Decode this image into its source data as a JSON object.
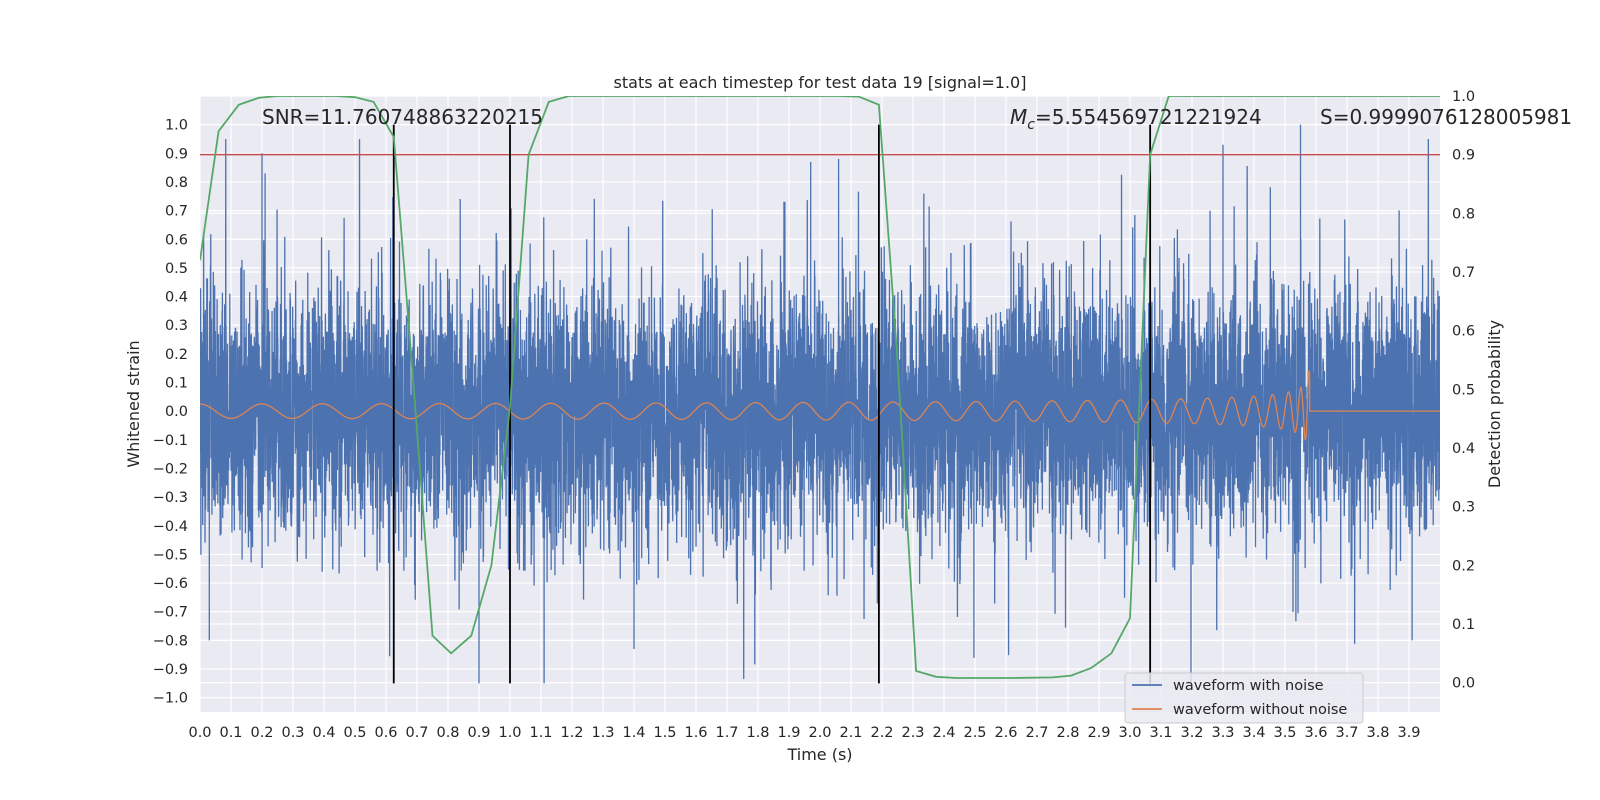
{
  "chart_data": {
    "type": "line",
    "title": "stats at each timestep for test data 19 [signal=1.0]",
    "xlabel": "Time (s)",
    "ylabel": "Whitened strain",
    "y2label": "Detection probability",
    "xlim": [
      0.0,
      4.0
    ],
    "ylim": [
      -1.05,
      1.1
    ],
    "y2lim": [
      -0.05,
      1.0
    ],
    "x_ticks": [
      "0.0",
      "0.1",
      "0.2",
      "0.3",
      "0.4",
      "0.5",
      "0.6",
      "0.7",
      "0.8",
      "0.9",
      "1.0",
      "1.1",
      "1.2",
      "1.3",
      "1.4",
      "1.5",
      "1.6",
      "1.7",
      "1.8",
      "1.9",
      "2.0",
      "2.1",
      "2.2",
      "2.3",
      "2.4",
      "2.5",
      "2.6",
      "2.7",
      "2.8",
      "2.9",
      "3.0",
      "3.1",
      "3.2",
      "3.3",
      "3.4",
      "3.5",
      "3.6",
      "3.7",
      "3.8",
      "3.9"
    ],
    "y_ticks": [
      "1.0",
      "0.9",
      "0.8",
      "0.7",
      "0.6",
      "0.5",
      "0.4",
      "0.3",
      "0.2",
      "0.1",
      "0.0",
      "−0.1",
      "−0.2",
      "−0.3",
      "−0.4",
      "−0.5",
      "−0.6",
      "−0.7",
      "−0.8",
      "−0.9",
      "−1.0"
    ],
    "y2_ticks": [
      "1.0",
      "0.9",
      "0.8",
      "0.7",
      "0.6",
      "0.5",
      "0.4",
      "0.3",
      "0.2",
      "0.1",
      "0.0"
    ],
    "annotations": {
      "snr": "SNR=11.760748863220215",
      "mc_symbol": "M",
      "mc_sub": "c",
      "mc_value": "=5.554569721221924",
      "s": "S=0.9999076128005981"
    },
    "threshold": {
      "value": 0.9,
      "axis": "y2",
      "color": "#c44e52"
    },
    "vlines": [
      0.625,
      1.0,
      2.19,
      3.065
    ],
    "vline_range": [
      -0.95,
      1.0
    ],
    "series": [
      {
        "name": "waveform with noise",
        "color": "#4c72b0",
        "axis": "y",
        "kind": "noise",
        "sample_rate": 2048,
        "std": 0.22,
        "envelope_range": [
          -0.95,
          0.95
        ],
        "spikes": [
          [
            0.2,
            0.9
          ],
          [
            0.21,
            0.83
          ],
          [
            0.03,
            -0.8
          ],
          [
            0.9,
            -0.95
          ],
          [
            1.11,
            -0.95
          ],
          [
            3.55,
            1.0
          ],
          [
            3.3,
            0.93
          ],
          [
            2.06,
            0.88
          ],
          [
            1.97,
            0.87
          ],
          [
            3.91,
            -0.8
          ],
          [
            1.4,
            -0.83
          ]
        ]
      },
      {
        "name": "waveform without noise",
        "color": "#dd8452",
        "axis": "y",
        "kind": "chirp",
        "amplitude_range": [
          0.025,
          0.375
        ],
        "end_time": 3.58
      },
      {
        "name": "detection probability",
        "color": "#55a868",
        "axis": "y2",
        "x": [
          0.0,
          0.06,
          0.125,
          0.19,
          0.25,
          0.3,
          0.38,
          0.44,
          0.5,
          0.56,
          0.625,
          0.69,
          0.75,
          0.81,
          0.875,
          0.94,
          1.0,
          1.06,
          1.125,
          1.19,
          1.25,
          1.5,
          1.75,
          2.0,
          2.06,
          2.125,
          2.19,
          2.25,
          2.31,
          2.375,
          2.44,
          2.5,
          2.625,
          2.75,
          2.81,
          2.875,
          2.94,
          3.0,
          3.065,
          3.125,
          3.19,
          3.25,
          3.5,
          3.75,
          4.0
        ],
        "y": [
          0.72,
          0.94,
          0.985,
          0.997,
          1.0,
          1.0,
          1.0,
          1.0,
          0.998,
          0.99,
          0.93,
          0.5,
          0.08,
          0.05,
          0.08,
          0.2,
          0.47,
          0.9,
          0.99,
          1.0,
          1.0,
          1.0,
          1.0,
          1.0,
          1.0,
          0.999,
          0.985,
          0.55,
          0.02,
          0.01,
          0.008,
          0.008,
          0.008,
          0.009,
          0.012,
          0.025,
          0.05,
          0.11,
          0.9,
          1.0,
          1.0,
          1.0,
          1.0,
          1.0,
          1.0
        ]
      }
    ],
    "legend": {
      "placement": "lower-right",
      "entries": [
        "waveform with noise",
        "waveform without noise"
      ]
    },
    "grid": true
  }
}
